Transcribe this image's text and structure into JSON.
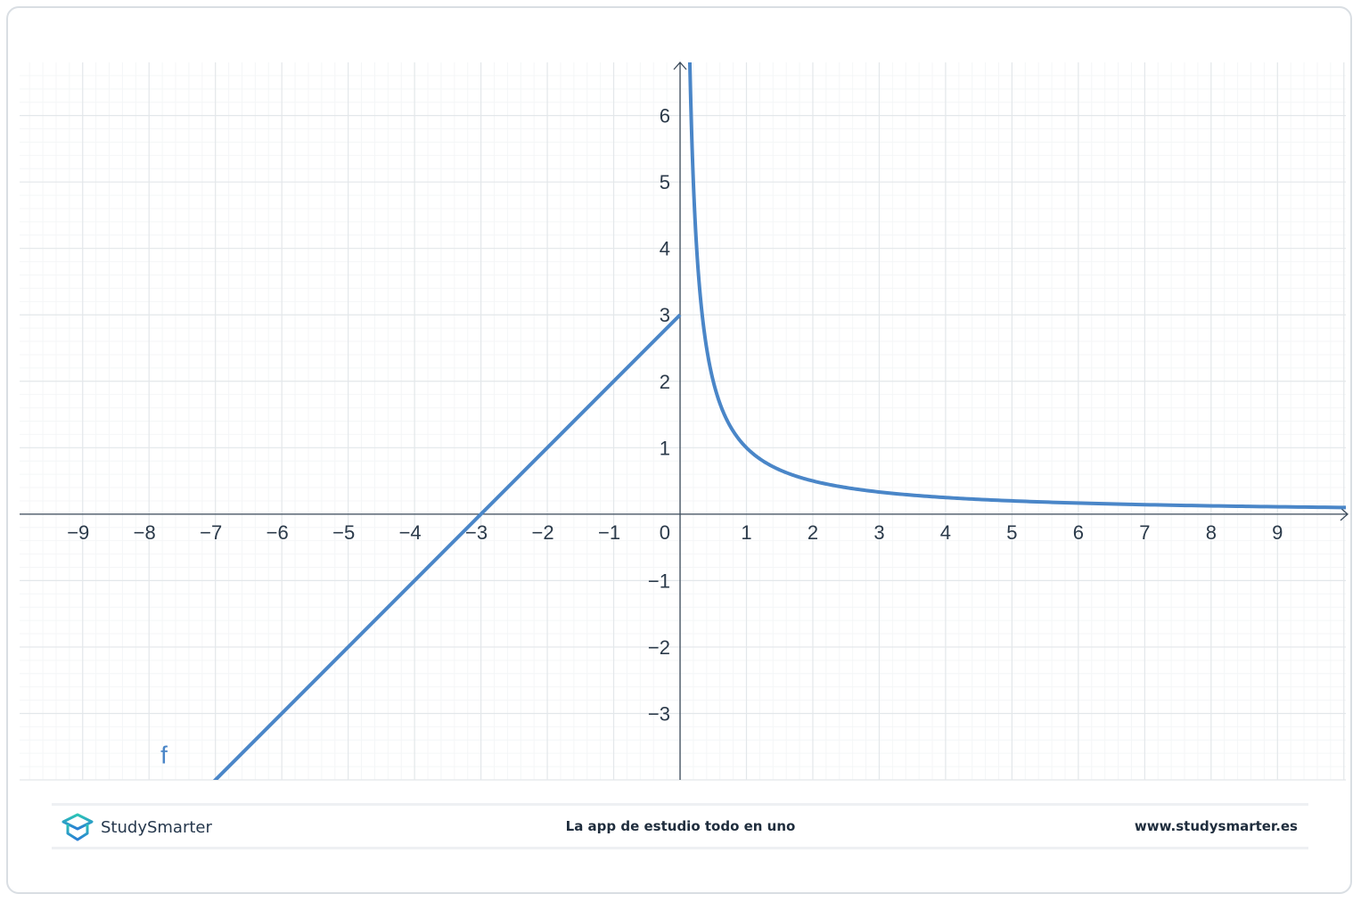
{
  "chart_data": {
    "type": "line",
    "title": "",
    "xlabel": "",
    "ylabel": "",
    "xlim": [
      -9.95,
      10.03
    ],
    "ylim": [
      -4.0,
      6.8
    ],
    "grid": true,
    "minor_grid_step": 0.2,
    "x_ticks": [
      "−9",
      "−8",
      "−7",
      "−6",
      "−5",
      "−4",
      "−3",
      "−2",
      "−1",
      "1",
      "2",
      "3",
      "4",
      "5",
      "6",
      "7",
      "8",
      "9"
    ],
    "x_tick_values": [
      -9,
      -8,
      -7,
      -6,
      -5,
      -4,
      -3,
      -2,
      -1,
      1,
      2,
      3,
      4,
      5,
      6,
      7,
      8,
      9
    ],
    "y_ticks": [
      "6",
      "5",
      "4",
      "3",
      "2",
      "1",
      "−1",
      "−2",
      "−3"
    ],
    "y_tick_values": [
      6,
      5,
      4,
      3,
      2,
      1,
      -1,
      -2,
      -3
    ],
    "origin_label": "0",
    "series": [
      {
        "name": "f",
        "color": "#4a86c8",
        "pieces": [
          {
            "formula": "x + 3",
            "domain": [
              -7.05,
              0
            ],
            "points": [
              [
                -7.05,
                -4.05
              ],
              [
                0,
                3
              ]
            ]
          },
          {
            "formula": "1/x",
            "domain": [
              0.147,
              10.03
            ],
            "points": [
              [
                0.147,
                6.8
              ],
              [
                0.5,
                2
              ],
              [
                1,
                1
              ],
              [
                2,
                0.5
              ],
              [
                3,
                0.333
              ],
              [
                5,
                0.2
              ],
              [
                10,
                0.1
              ]
            ]
          }
        ]
      }
    ],
    "annotations": [
      {
        "text": "f",
        "x": -7.8,
        "y": -3.7
      }
    ]
  },
  "footer": {
    "brand": "StudySmarter",
    "tagline": "La app de estudio todo en uno",
    "url": "www.studysmarter.es",
    "brand_colors": [
      "#2cc5b5",
      "#2a7fd4"
    ]
  }
}
